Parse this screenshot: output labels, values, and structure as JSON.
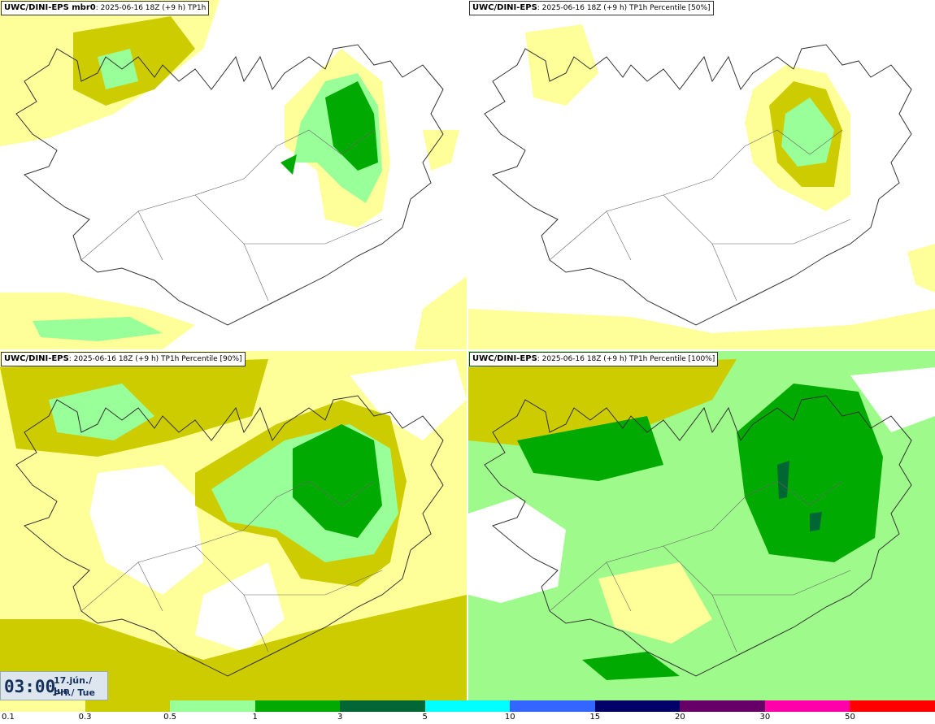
{
  "panels": [
    {
      "model": "UWC/DINI-EPS mbr0",
      "info": ": 2025-06-16 18Z (+9 h) TP1h"
    },
    {
      "model": "UWC/DINI-EPS",
      "info": ": 2025-06-16 18Z (+9 h) TP1h Percentile [50%]"
    },
    {
      "model": "UWC/DINI-EPS",
      "info": ": 2025-06-16 18Z (+9 h) TP1h Percentile [90%]"
    },
    {
      "model": "UWC/DINI-EPS",
      "info": ": 2025-06-16 18Z (+9 h) TP1h Percentile [100%]"
    }
  ],
  "time": {
    "clock": "03:00",
    "date": "17.jún./ Jun",
    "weekday": "Þri./ Tue"
  },
  "legend": {
    "labels": [
      "0.1",
      "0.3",
      "0.5",
      "1",
      "3",
      "5",
      "10",
      "15",
      "20",
      "30",
      "50"
    ],
    "colors": [
      "#ffff99",
      "#cccc00",
      "#99ff99",
      "#00aa00",
      "#006633",
      "#00ffff",
      "#3366ff",
      "#000066",
      "#660066",
      "#ff00aa",
      "#ff0000"
    ]
  },
  "colors": {
    "light_yellow": "#ffff99",
    "olive": "#cccc00",
    "light_green": "#99ff99",
    "green": "#00aa00",
    "dark_green": "#006633"
  }
}
